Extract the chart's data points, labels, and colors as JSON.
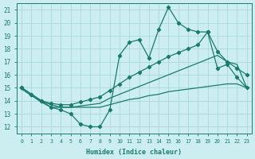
{
  "xlabel": "Humidex (Indice chaleur)",
  "bg_color": "#cceef0",
  "grid_color": "#aad8dc",
  "line_color": "#1a7a6e",
  "xlim": [
    -0.5,
    23.5
  ],
  "ylim": [
    11.5,
    21.5
  ],
  "yticks": [
    12,
    13,
    14,
    15,
    16,
    17,
    18,
    19,
    20,
    21
  ],
  "xticks": [
    0,
    1,
    2,
    3,
    4,
    5,
    6,
    7,
    8,
    9,
    10,
    11,
    12,
    13,
    14,
    15,
    16,
    17,
    18,
    19,
    20,
    21,
    22,
    23
  ],
  "line_spiky_x": [
    0,
    1,
    2,
    3,
    4,
    5,
    6,
    7,
    8,
    9,
    10,
    11,
    12,
    13,
    14,
    15,
    16,
    17,
    18,
    19,
    20,
    21,
    22,
    23
  ],
  "line_spiky_y": [
    15.0,
    14.5,
    14.0,
    13.5,
    13.3,
    13.0,
    12.2,
    12.0,
    12.0,
    13.3,
    17.5,
    18.5,
    18.7,
    17.3,
    19.5,
    21.2,
    20.0,
    19.5,
    19.3,
    19.3,
    16.5,
    16.8,
    15.8,
    15.0
  ],
  "line_upper_x": [
    0,
    1,
    2,
    3,
    4,
    5,
    6,
    7,
    8,
    9,
    10,
    11,
    12,
    13,
    14,
    15,
    16,
    17,
    18,
    19,
    20,
    21,
    22,
    23
  ],
  "line_upper_y": [
    15.0,
    14.5,
    14.0,
    13.8,
    13.7,
    13.7,
    13.9,
    14.1,
    14.3,
    14.8,
    15.3,
    15.8,
    16.2,
    16.6,
    17.0,
    17.4,
    17.7,
    18.0,
    18.3,
    19.3,
    17.8,
    17.0,
    16.5,
    16.0
  ],
  "line_mid_x": [
    0,
    1,
    2,
    3,
    4,
    5,
    6,
    7,
    8,
    9,
    10,
    11,
    12,
    13,
    14,
    15,
    16,
    17,
    18,
    19,
    20,
    21,
    22,
    23
  ],
  "line_mid_y": [
    15.0,
    14.5,
    14.0,
    13.7,
    13.5,
    13.5,
    13.6,
    13.7,
    13.8,
    14.2,
    14.5,
    14.8,
    15.1,
    15.4,
    15.7,
    16.0,
    16.3,
    16.6,
    16.9,
    17.2,
    17.5,
    17.0,
    16.8,
    15.0
  ],
  "line_flat_x": [
    0,
    1,
    2,
    3,
    4,
    5,
    6,
    7,
    8,
    9,
    10,
    11,
    12,
    13,
    14,
    15,
    16,
    17,
    18,
    19,
    20,
    21,
    22,
    23
  ],
  "line_flat_y": [
    14.9,
    14.4,
    13.9,
    13.5,
    13.5,
    13.5,
    13.5,
    13.5,
    13.5,
    13.7,
    13.9,
    14.1,
    14.2,
    14.4,
    14.5,
    14.7,
    14.8,
    14.9,
    15.0,
    15.1,
    15.2,
    15.3,
    15.3,
    15.0
  ]
}
